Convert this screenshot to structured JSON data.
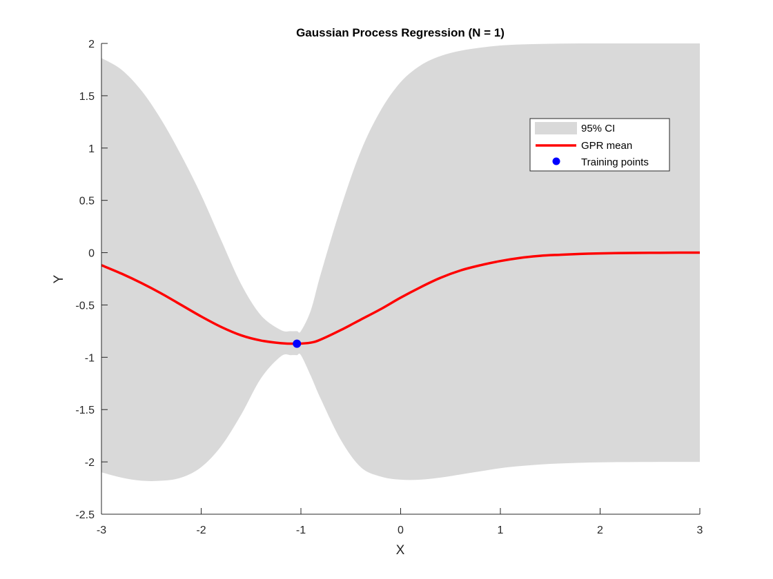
{
  "chart_data": {
    "type": "line",
    "title": "Gaussian Process Regression (N = 1)",
    "xlabel": "X",
    "ylabel": "Y",
    "xlim": [
      -3,
      3
    ],
    "ylim": [
      -2.5,
      2
    ],
    "xticks": [
      -3,
      -2,
      -1,
      0,
      1,
      2,
      3
    ],
    "yticks": [
      -2.5,
      -2,
      -1.5,
      -1,
      -0.5,
      0,
      0.5,
      1,
      1.5,
      2
    ],
    "grid": false,
    "legend_position": "top-right",
    "colors": {
      "ci_fill": "#d9d9d9",
      "mean_line": "#ff0000",
      "training_point": "#0000ff",
      "axes": "#262626"
    },
    "series": [
      {
        "name": "95% CI",
        "kind": "band",
        "x": [
          -3,
          -2.8,
          -2.6,
          -2.4,
          -2.2,
          -2,
          -1.8,
          -1.6,
          -1.4,
          -1.2,
          -1.1,
          -1.04,
          -1,
          -0.9,
          -0.8,
          -0.6,
          -0.4,
          -0.2,
          0,
          0.2,
          0.4,
          0.6,
          0.8,
          1,
          1.2,
          1.4,
          1.6,
          1.8,
          2,
          2.2,
          2.4,
          2.6,
          2.8,
          3
        ],
        "upper": [
          1.86,
          1.75,
          1.55,
          1.27,
          0.93,
          0.55,
          0.12,
          -0.3,
          -0.6,
          -0.74,
          -0.75,
          -0.75,
          -0.75,
          -0.55,
          -0.2,
          0.43,
          0.97,
          1.36,
          1.63,
          1.79,
          1.88,
          1.93,
          1.96,
          1.98,
          1.99,
          1.995,
          1.998,
          2,
          2,
          2,
          2,
          2,
          2,
          2
        ],
        "lower": [
          -2.1,
          -2.15,
          -2.18,
          -2.18,
          -2.15,
          -2.05,
          -1.85,
          -1.55,
          -1.2,
          -0.99,
          -0.98,
          -0.98,
          -0.98,
          -1.18,
          -1.4,
          -1.79,
          -2.05,
          -2.14,
          -2.17,
          -2.17,
          -2.15,
          -2.12,
          -2.09,
          -2.06,
          -2.04,
          -2.025,
          -2.015,
          -2.008,
          -2.004,
          -2.002,
          -2.001,
          -2,
          -2,
          -2
        ]
      },
      {
        "name": "GPR mean",
        "kind": "line",
        "x": [
          -3,
          -2.8,
          -2.6,
          -2.4,
          -2.2,
          -2,
          -1.8,
          -1.6,
          -1.4,
          -1.2,
          -1.04,
          -0.9,
          -0.8,
          -0.6,
          -0.4,
          -0.2,
          0,
          0.2,
          0.4,
          0.6,
          0.8,
          1,
          1.2,
          1.4,
          1.6,
          1.8,
          2,
          2.2,
          2.4,
          2.6,
          2.8,
          3
        ],
        "y": [
          -0.12,
          -0.2,
          -0.29,
          -0.39,
          -0.5,
          -0.61,
          -0.71,
          -0.79,
          -0.84,
          -0.865,
          -0.87,
          -0.86,
          -0.83,
          -0.74,
          -0.64,
          -0.54,
          -0.43,
          -0.33,
          -0.24,
          -0.17,
          -0.12,
          -0.08,
          -0.05,
          -0.03,
          -0.02,
          -0.012,
          -0.007,
          -0.004,
          -0.002,
          -0.001,
          0,
          0
        ]
      },
      {
        "name": "Training points",
        "kind": "scatter",
        "x": [
          -1.04
        ],
        "y": [
          -0.87
        ]
      }
    ]
  }
}
